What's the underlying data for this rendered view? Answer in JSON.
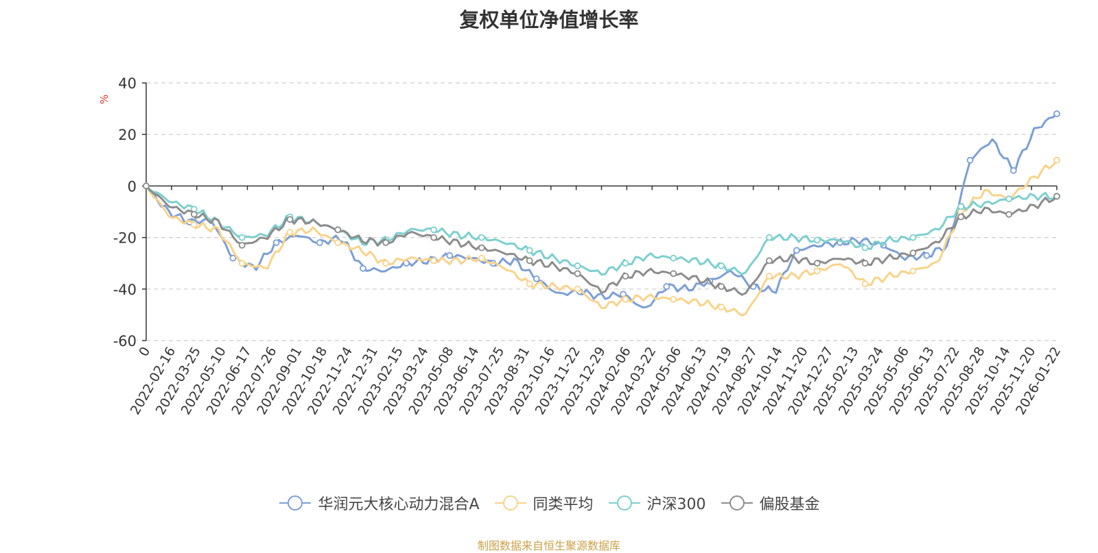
{
  "title": "复权单位净值增长率",
  "y_unit": "%",
  "source": "制图数据来自恒生聚源数据库",
  "chart_data": {
    "type": "line",
    "title": "复权单位净值增长率",
    "ylabel": "%",
    "ylim": [
      -60,
      40
    ],
    "y_ticks": [
      "40",
      "20",
      "0",
      "-20",
      "-40",
      "-60"
    ],
    "grid": true,
    "legend_position": "bottom",
    "x_tick_labels": [
      "0",
      "2022-02-16",
      "2022-03-25",
      "2022-05-10",
      "2022-06-17",
      "2022-07-26",
      "2022-09-01",
      "2022-10-18",
      "2022-11-24",
      "2022-12-31",
      "2023-02-15",
      "2023-03-24",
      "2023-05-08",
      "2023-06-14",
      "2023-07-25",
      "2023-08-31",
      "2023-10-16",
      "2023-11-22",
      "2023-12-29",
      "2024-02-06",
      "2024-03-22",
      "2024-05-06",
      "2024-06-13",
      "2024-07-19",
      "2024-08-27",
      "2024-10-14",
      "2024-11-20",
      "2024-12-27",
      "2025-02-13",
      "2025-03-24",
      "2025-05-06",
      "2025-06-13",
      "2025-07-22",
      "2025-08-28",
      "2025-10-14",
      "2025-11-20",
      "2026-01-22"
    ],
    "series": [
      {
        "name": "华润元大核心动力混合A",
        "color": "#7b9fd6",
        "values": [
          0,
          -10,
          -14,
          -13,
          -28,
          -32,
          -22,
          -19,
          -22,
          -20,
          -32,
          -33,
          -30,
          -29,
          -27,
          -28,
          -30,
          -29,
          -36,
          -42,
          -41,
          -43,
          -42,
          -48,
          -39,
          -40,
          -37,
          -33,
          -39,
          -41,
          -25,
          -23,
          -22,
          -21,
          -23,
          -28,
          -27,
          -23,
          10,
          18,
          6,
          22,
          28
        ]
      },
      {
        "name": "同类平均",
        "color": "#f9d38a",
        "values": [
          0,
          -12,
          -15,
          -17,
          -30,
          -32,
          -18,
          -17,
          -22,
          -25,
          -30,
          -28,
          -29,
          -29,
          -28,
          -32,
          -38,
          -39,
          -40,
          -47,
          -44,
          -43,
          -44,
          -45,
          -47,
          -50,
          -35,
          -35,
          -33,
          -30,
          -38,
          -35,
          -33,
          -30,
          -10,
          -2,
          -5,
          3,
          10
        ]
      },
      {
        "name": "沪深300",
        "color": "#7ccfcf",
        "values": [
          0,
          -6,
          -9,
          -14,
          -20,
          -19,
          -12,
          -14,
          -17,
          -22,
          -21,
          -17,
          -17,
          -19,
          -20,
          -22,
          -25,
          -28,
          -31,
          -34,
          -30,
          -27,
          -28,
          -29,
          -31,
          -34,
          -20,
          -20,
          -21,
          -21,
          -24,
          -21,
          -20,
          -17,
          -8,
          -7,
          -5,
          -4,
          -4
        ]
      },
      {
        "name": "偏股基金",
        "color": "#8c8c8c",
        "values": [
          0,
          -8,
          -11,
          -14,
          -23,
          -20,
          -13,
          -14,
          -17,
          -21,
          -22,
          -18,
          -20,
          -22,
          -24,
          -26,
          -29,
          -31,
          -34,
          -41,
          -35,
          -33,
          -34,
          -36,
          -39,
          -42,
          -29,
          -28,
          -30,
          -28,
          -30,
          -28,
          -26,
          -22,
          -12,
          -9,
          -11,
          -8,
          -4
        ]
      }
    ]
  }
}
